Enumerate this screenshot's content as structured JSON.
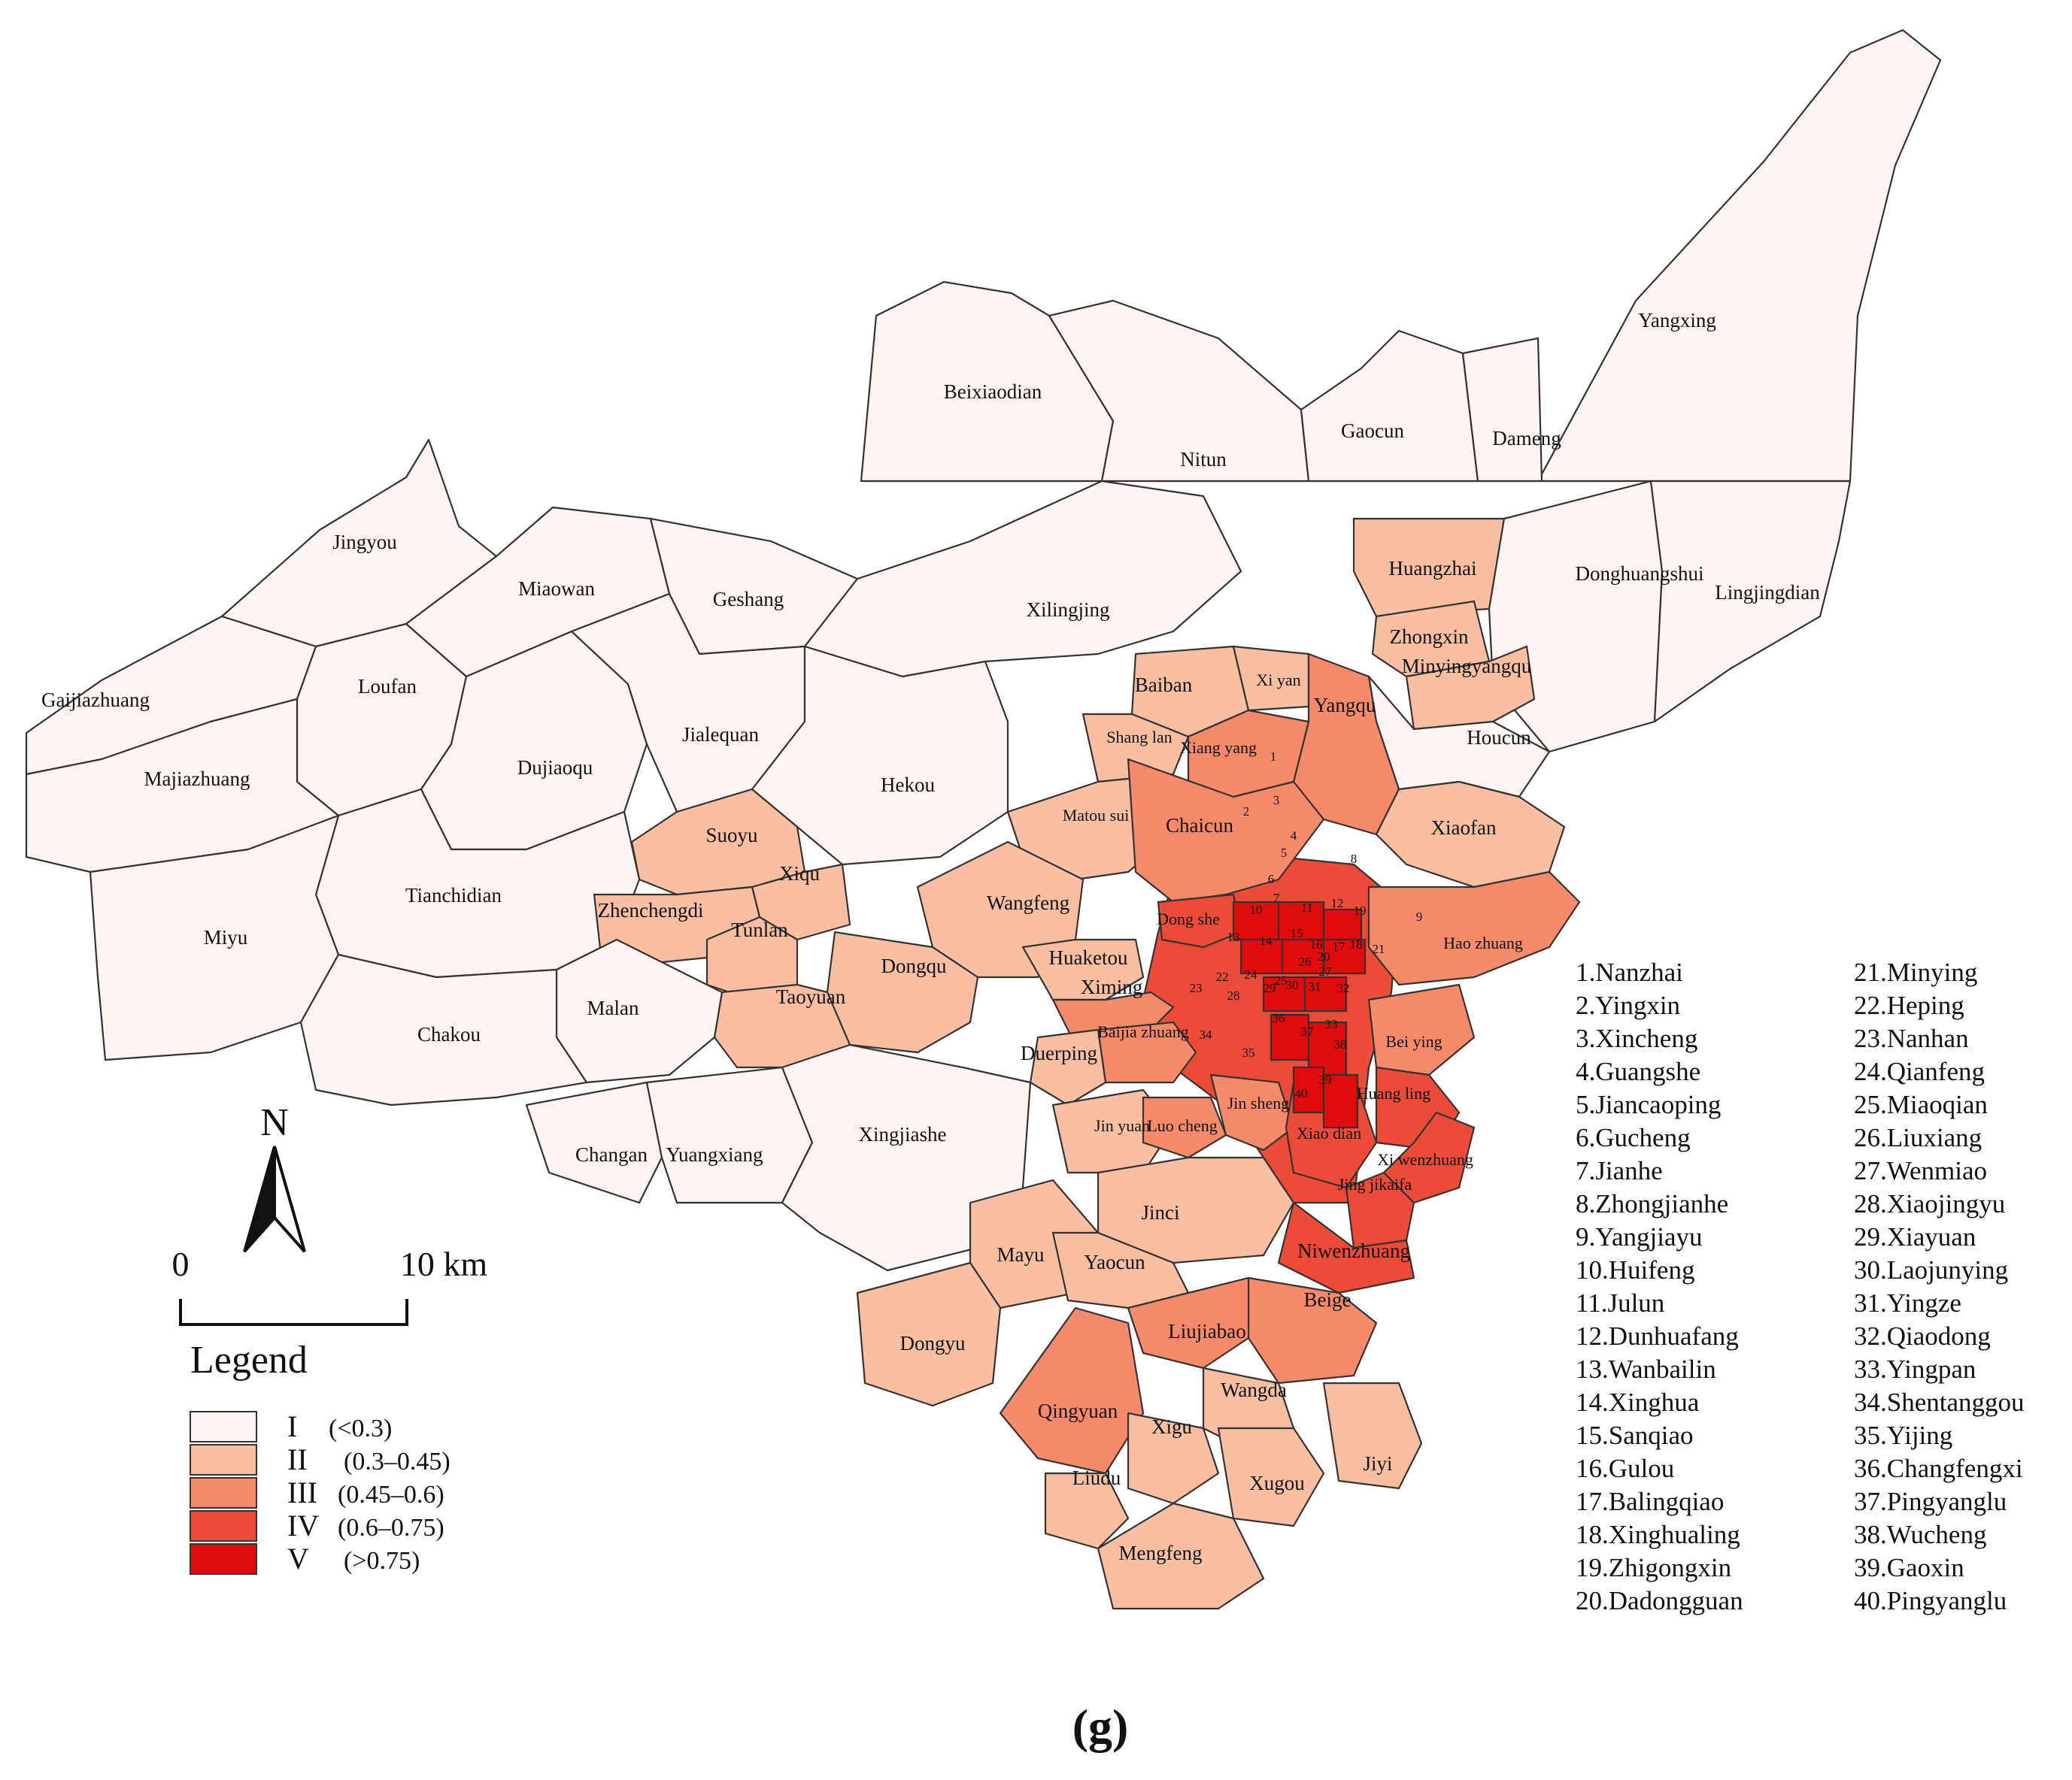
{
  "figure_label": "(g)",
  "colors": {
    "class_I": "#fdf5f1",
    "class_II": "#f9bfa2",
    "class_III": "#f78a6b",
    "class_IV": "#ec4b38",
    "class_V": "#e00b0b",
    "border": "#333333"
  },
  "legend": {
    "title": "Legend",
    "items": [
      {
        "class": "I",
        "range": "(<0.3)",
        "color": "#fdf5f1"
      },
      {
        "class": "II",
        "range": "(0.3–0.45)",
        "color": "#f9bfa2"
      },
      {
        "class": "III",
        "range": "(0.45–0.6)",
        "color": "#f78a6b"
      },
      {
        "class": "IV",
        "range": "(0.6–0.75)",
        "color": "#ec4b38"
      },
      {
        "class": "V",
        "range": "(>0.75)",
        "color": "#e00b0b"
      }
    ]
  },
  "north_arrow": {
    "label": "N",
    "icon": "north-arrow-icon"
  },
  "scale_bar": {
    "start": "0",
    "end": "10 km"
  },
  "regions": [
    {
      "name": "Yangxing",
      "class": "I"
    },
    {
      "name": "Beixiaodian",
      "class": "I"
    },
    {
      "name": "Nitun",
      "class": "I"
    },
    {
      "name": "Gaocun",
      "class": "I"
    },
    {
      "name": "Dameng",
      "class": "I"
    },
    {
      "name": "Jingyou",
      "class": "I"
    },
    {
      "name": "Miaowan",
      "class": "I"
    },
    {
      "name": "Geshang",
      "class": "I"
    },
    {
      "name": "Xilingjing",
      "class": "I"
    },
    {
      "name": "Huangzhai",
      "class": "II"
    },
    {
      "name": "Donghuangshui",
      "class": "I"
    },
    {
      "name": "Lingjingdian",
      "class": "I"
    },
    {
      "name": "Gaijiazhuang",
      "class": "I"
    },
    {
      "name": "Loufan",
      "class": "I"
    },
    {
      "name": "Majiazhuang",
      "class": "I"
    },
    {
      "name": "Dujiaoqu",
      "class": "I"
    },
    {
      "name": "Jialequan",
      "class": "I"
    },
    {
      "name": "Hekou",
      "class": "I"
    },
    {
      "name": "Zhongxin",
      "class": "II"
    },
    {
      "name": "Minyingyangqu",
      "class": "II"
    },
    {
      "name": "Houcun",
      "class": "I"
    },
    {
      "name": "Baiban",
      "class": "II"
    },
    {
      "name": "Xi yan",
      "class": "II"
    },
    {
      "name": "Yangqu",
      "class": "III"
    },
    {
      "name": "Shang lan",
      "class": "II"
    },
    {
      "name": "Xiang yang",
      "class": "III"
    },
    {
      "name": "Suoyu",
      "class": "II"
    },
    {
      "name": "Xiqu",
      "class": "II"
    },
    {
      "name": "Matou sui",
      "class": "II"
    },
    {
      "name": "Chaicun",
      "class": "III"
    },
    {
      "name": "Xiaofan",
      "class": "II"
    },
    {
      "name": "Tianchidian",
      "class": "I"
    },
    {
      "name": "Zhenchengdi",
      "class": "II"
    },
    {
      "name": "Wangfeng",
      "class": "II"
    },
    {
      "name": "Miyu",
      "class": "I"
    },
    {
      "name": "Tunlan",
      "class": "II"
    },
    {
      "name": "Dong she",
      "class": "IV"
    },
    {
      "name": "Hao zhuang",
      "class": "III"
    },
    {
      "name": "Dongqu",
      "class": "II"
    },
    {
      "name": "Huaketou",
      "class": "II"
    },
    {
      "name": "Ximing",
      "class": "III"
    },
    {
      "name": "Taoyuan",
      "class": "II"
    },
    {
      "name": "Malan",
      "class": "I"
    },
    {
      "name": "Chakou",
      "class": "I"
    },
    {
      "name": "Baijia zhuang",
      "class": "III"
    },
    {
      "name": "Duerping",
      "class": "II"
    },
    {
      "name": "Bei ying",
      "class": "III"
    },
    {
      "name": "Huang ling",
      "class": "IV"
    },
    {
      "name": "Jin yuan",
      "class": "II"
    },
    {
      "name": "Luo cheng",
      "class": "III"
    },
    {
      "name": "Jin sheng",
      "class": "III"
    },
    {
      "name": "Xiao dian",
      "class": "IV"
    },
    {
      "name": "Xi wenzhuang",
      "class": "IV"
    },
    {
      "name": "Changan",
      "class": "I"
    },
    {
      "name": "Yuangxiang",
      "class": "I"
    },
    {
      "name": "Xingjiashe",
      "class": "I"
    },
    {
      "name": "Jinci",
      "class": "II"
    },
    {
      "name": "Jing jikaifa",
      "class": "IV"
    },
    {
      "name": "Mayu",
      "class": "II"
    },
    {
      "name": "Yaocun",
      "class": "II"
    },
    {
      "name": "Niwenzhuang",
      "class": "IV"
    },
    {
      "name": "Beige",
      "class": "III"
    },
    {
      "name": "Liujiabao",
      "class": "III"
    },
    {
      "name": "Dongyu",
      "class": "II"
    },
    {
      "name": "Wangda",
      "class": "II"
    },
    {
      "name": "Qingyuan",
      "class": "III"
    },
    {
      "name": "Xigu",
      "class": "II"
    },
    {
      "name": "Xugou",
      "class": "II"
    },
    {
      "name": "Jiyi",
      "class": "II"
    },
    {
      "name": "Liudu",
      "class": "II"
    },
    {
      "name": "Mengfeng",
      "class": "II"
    }
  ],
  "index_col1": [
    "1.Nanzhai",
    "2.Yingxin",
    "3.Xincheng",
    "4.Guangshe",
    "5.Jiancaoping",
    "6.Gucheng",
    "7.Jianhe",
    "8.Zhongjianhe",
    "9.Yangjiayu",
    "10.Huifeng",
    "11.Julun",
    "12.Dunhuafang",
    "13.Wanbailin",
    "14.Xinghua",
    "15.Sanqiao",
    "16.Gulou",
    "17.Balingqiao",
    "18.Xinghualing",
    "19.Zhigongxin",
    "20.Dadongguan"
  ],
  "index_col2": [
    "21.Minying",
    "22.Heping",
    "23.Nanhan",
    "24.Qianfeng",
    "25.Miaoqian",
    "26.Liuxiang",
    "27.Wenmiao",
    "28.Xiaojingyu",
    "29.Xiayuan",
    "30.Laojunying",
    "31.Yingze",
    "32.Qiaodong",
    "33.Yingpan",
    "34.Shentanggou",
    "35.Yijing",
    "36.Changfengxi",
    "37.Pingyanglu",
    "38.Wucheng",
    "39.Gaoxin",
    "40.Pingyanglu"
  ],
  "numbers": [
    "1",
    "2",
    "3",
    "4",
    "5",
    "6",
    "7",
    "8",
    "9",
    "10",
    "11",
    "12",
    "13",
    "14",
    "15",
    "16",
    "17",
    "18",
    "19",
    "20",
    "21",
    "22",
    "23",
    "24",
    "25",
    "26",
    "27",
    "28",
    "29",
    "30",
    "31",
    "32",
    "33",
    "34",
    "35",
    "36",
    "37",
    "38",
    "39",
    "40"
  ]
}
